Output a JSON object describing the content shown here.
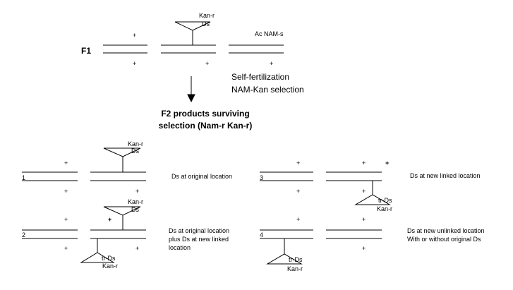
{
  "f1": {
    "generation_label": "F1",
    "kan_label": "Kan-r",
    "ds_label": "Ds",
    "ac_label": "Ac NAM-s",
    "plus": "+",
    "step_line1": "Self-fertilization",
    "step_line2": "NAM-Kan selection"
  },
  "f2": {
    "title_line1": "F2 products surviving",
    "title_line2": "selection (Nam-r Kan-r)"
  },
  "cases": [
    {
      "number": "1",
      "kan_top": "Kan-r",
      "ds_top": "Ds",
      "desc": [
        "Ds at original location"
      ]
    },
    {
      "number": "2",
      "kan_top": "Kan-r",
      "ds_top": "Ds",
      "tr_ds": "tr-Ds",
      "kan_bottom": "Kan-r",
      "desc": [
        "Ds at original location",
        "plus Ds at new linked",
        "location"
      ]
    },
    {
      "number": "3",
      "tr_ds": "tr-Ds",
      "kan_bottom": "Kan-r",
      "desc": [
        "Ds at new linked location"
      ]
    },
    {
      "number": "4",
      "tr_ds": "tr-Ds",
      "kan_bottom": "Kan-r",
      "desc": [
        "Ds at new unlinked location",
        "With or without original Ds"
      ]
    }
  ]
}
